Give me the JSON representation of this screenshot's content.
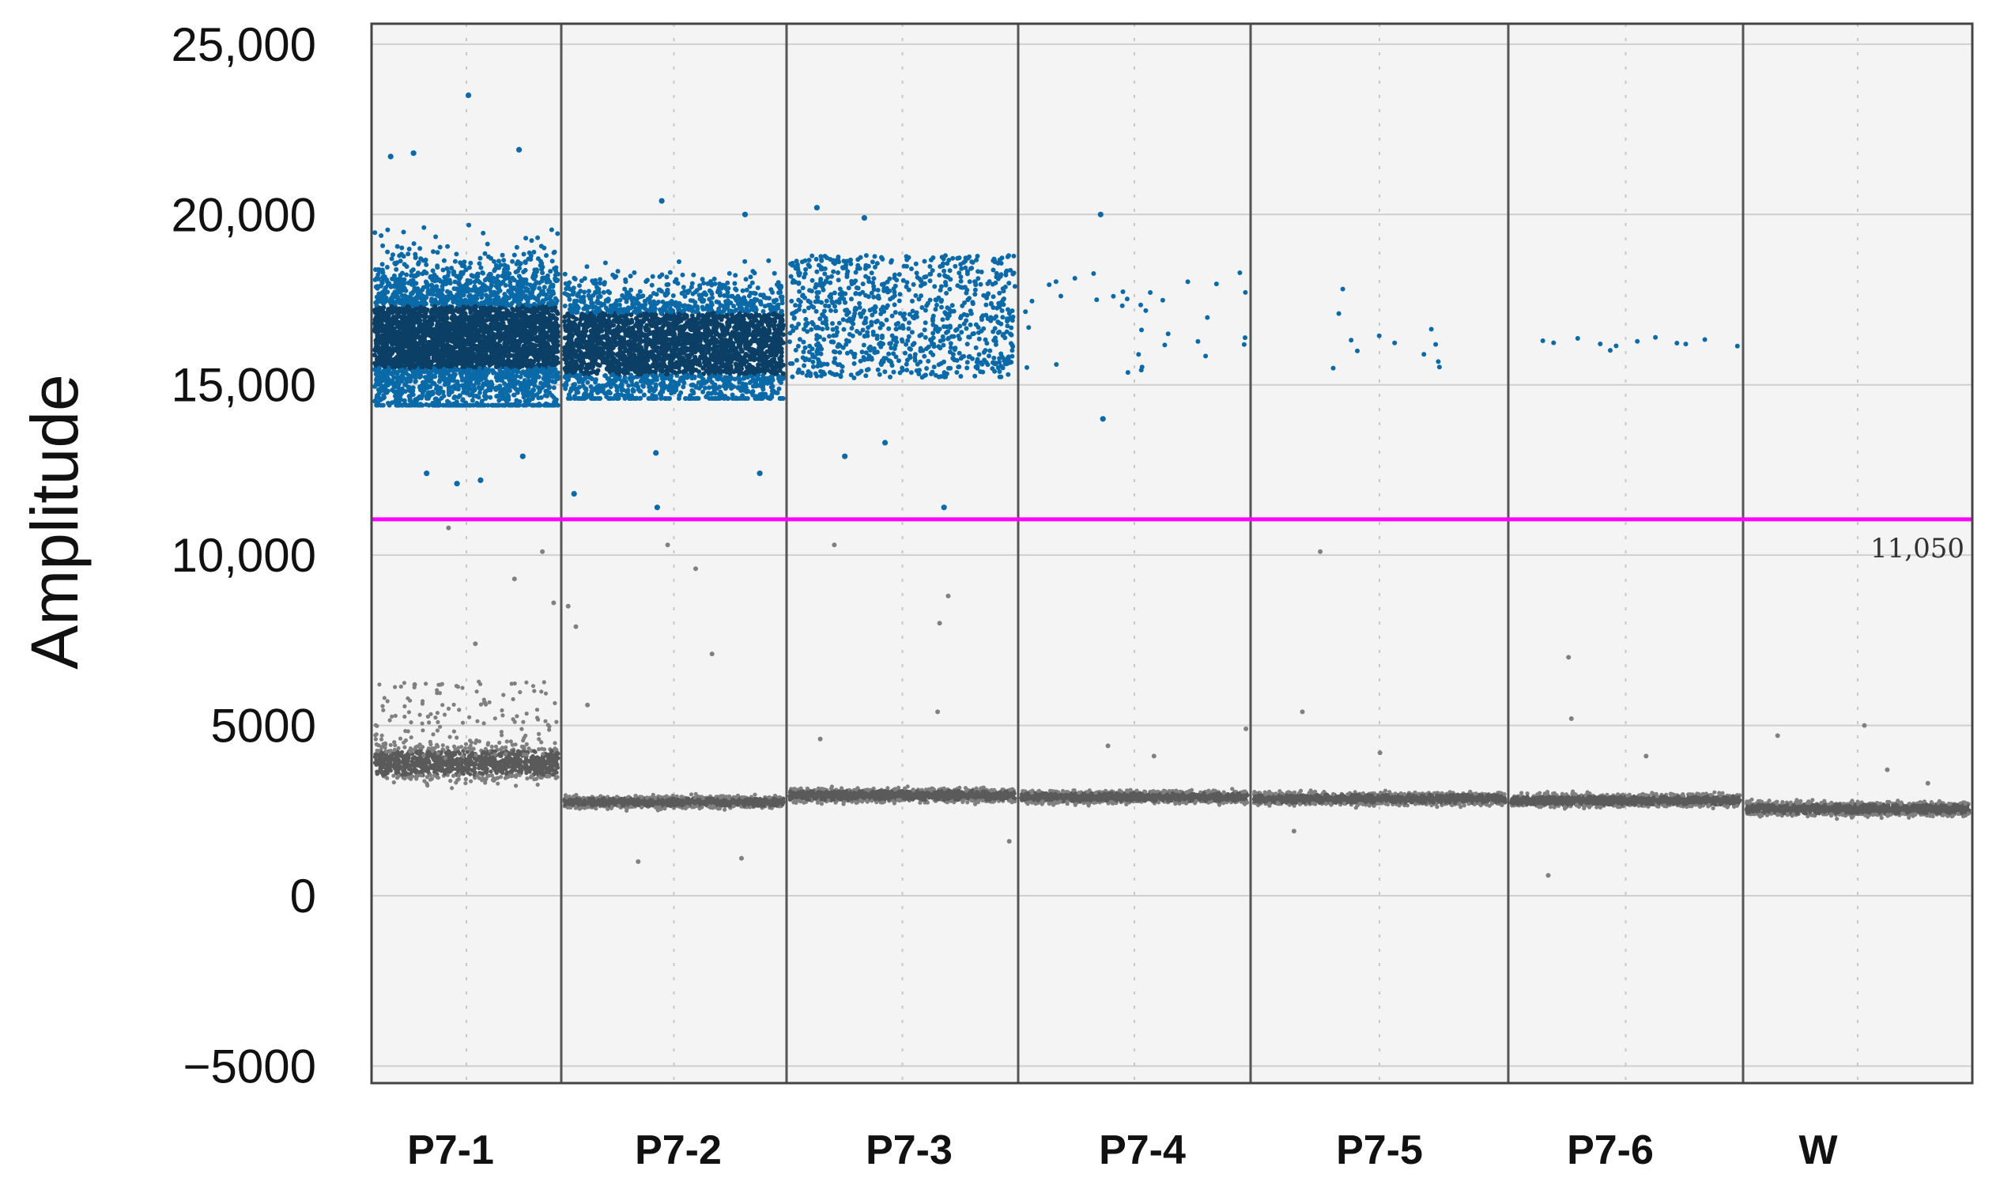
{
  "chart_data": {
    "type": "scatter",
    "title": "",
    "xlabel": "",
    "ylabel": "Amplitude",
    "ylim": [
      -5500,
      25600
    ],
    "yticks": [
      25000,
      20000,
      15000,
      10000,
      5000,
      0,
      -5000
    ],
    "ytick_labels": [
      "25,000",
      "20,000",
      "15,000",
      "10,000",
      "5000",
      "0",
      "−5000"
    ],
    "categories": [
      "P7-1",
      "P7-2",
      "P7-3",
      "P7-4",
      "P7-5",
      "P7-6",
      "W"
    ],
    "grid": true,
    "threshold": {
      "value": 11050,
      "label": "11,050",
      "color": "#ff00ff"
    },
    "colors": {
      "positive": "#0a6aa8",
      "positive_dense": "#0b3f66",
      "negative": "#808080",
      "negative_dense": "#5a5a5a",
      "plot_bg": "#f4f4f4",
      "divider": "#555555"
    },
    "wells": [
      {
        "name": "P7-1",
        "positive": {
          "median": 16400,
          "low": 14400,
          "high": 20400,
          "density": "very-high",
          "outliers": [
            23500,
            21900,
            21800,
            21700,
            12900,
            12200,
            12400,
            12100
          ]
        },
        "negative": {
          "median": 3900,
          "low": 3400,
          "high": 5000,
          "outliers": [
            6200,
            7400,
            8600,
            9300,
            10100,
            10800
          ]
        }
      },
      {
        "name": "P7-2",
        "positive": {
          "median": 16200,
          "low": 14600,
          "high": 19600,
          "density": "high",
          "outliers": [
            20400,
            20000,
            13000,
            12400,
            11800,
            11400
          ]
        },
        "negative": {
          "median": 2750,
          "low": 2500,
          "high": 3000,
          "outliers": [
            7100,
            7900,
            8500,
            9600,
            10300,
            1100,
            1000,
            5600
          ]
        }
      },
      {
        "name": "P7-3",
        "positive": {
          "median": 16200,
          "low": 15200,
          "high": 18800,
          "density": "medium",
          "outliers": [
            20200,
            19900,
            13300,
            12900,
            11400
          ]
        },
        "negative": {
          "median": 2950,
          "low": 2650,
          "high": 3250,
          "outliers": [
            5400,
            8000,
            8800,
            10300,
            1600,
            4600
          ]
        }
      },
      {
        "name": "P7-4",
        "positive": {
          "median": 16500,
          "low": 15300,
          "high": 18500,
          "density": "sparse",
          "outliers": [
            20000,
            14000
          ]
        },
        "negative": {
          "median": 2900,
          "low": 2650,
          "high": 3200,
          "outliers": [
            4100,
            4900,
            4400
          ]
        }
      },
      {
        "name": "P7-5",
        "positive": {
          "median": 16400,
          "low": 15200,
          "high": 18300,
          "density": "very-sparse",
          "outliers": []
        },
        "negative": {
          "median": 2850,
          "low": 2600,
          "high": 3150,
          "outliers": [
            10100,
            5400,
            1900,
            4200
          ]
        }
      },
      {
        "name": "P7-6",
        "positive": {
          "median": 16200,
          "low": 16000,
          "high": 16400,
          "density": "very-sparse",
          "outliers": []
        },
        "negative": {
          "median": 2800,
          "low": 2550,
          "high": 3100,
          "outliers": [
            7000,
            5200,
            600,
            4100
          ]
        }
      },
      {
        "name": "W",
        "positive": {
          "median": 0,
          "low": 0,
          "high": 0,
          "density": "none",
          "outliers": []
        },
        "negative": {
          "median": 2550,
          "low": 2250,
          "high": 2850,
          "outliers": [
            5000,
            4700,
            3700,
            3300
          ]
        }
      }
    ]
  }
}
